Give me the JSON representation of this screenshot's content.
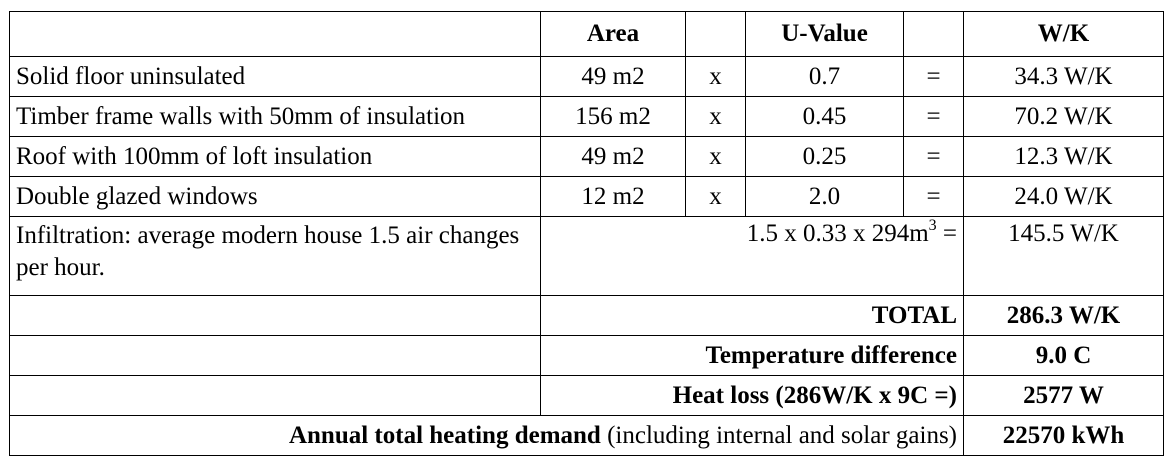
{
  "header": {
    "area": "Area",
    "uvalue": "U-Value",
    "wk": "W/K"
  },
  "rows": [
    {
      "label": "Solid floor uninsulated",
      "area": "49 m2",
      "x": "x",
      "u": "0.7",
      "eq": "=",
      "wk": "34.3 W/K"
    },
    {
      "label": "Timber frame walls with 50mm of insulation",
      "area": "156 m2",
      "x": "x",
      "u": "0.45",
      "eq": "=",
      "wk": "70.2 W/K"
    },
    {
      "label": "Roof with 100mm of loft insulation",
      "area": "49 m2",
      "x": "x",
      "u": "0.25",
      "eq": "=",
      "wk": "12.3 W/K"
    },
    {
      "label": "Double glazed windows",
      "area": "12 m2",
      "x": "x",
      "u": "2.0",
      "eq": "=",
      "wk": "24.0 W/K"
    }
  ],
  "infiltration": {
    "label": "Infiltration: average modern house 1.5 air changes per hour.",
    "formula_main": "1.5 x 0.33 x 294m",
    "formula_sup": "3",
    "formula_eq": "=",
    "wk": "145.5 W/K"
  },
  "total": {
    "label": "TOTAL",
    "value": "286.3 W/K"
  },
  "temp_diff": {
    "label": "Temperature difference",
    "value": "9.0 C"
  },
  "heat_loss": {
    "label": "Heat loss (286W/K x 9C =)",
    "value": "2577 W"
  },
  "annual": {
    "label_bold": "Annual total heating demand",
    "label_normal": " (including internal and solar gains)",
    "value": "22570 kWh"
  }
}
